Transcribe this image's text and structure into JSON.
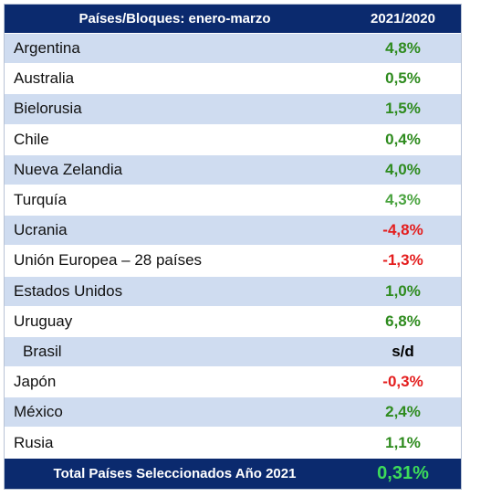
{
  "table": {
    "header": {
      "col1": "Países/Bloques: enero-marzo",
      "col2": "2021/2020"
    },
    "rows": [
      {
        "name": "Argentina",
        "value": "4,8%",
        "tone": "pos"
      },
      {
        "name": "Australia",
        "value": "0,5%",
        "tone": "pos"
      },
      {
        "name": "Bielorusia",
        "value": "1,5%",
        "tone": "pos"
      },
      {
        "name": "Chile",
        "value": "0,4%",
        "tone": "pos"
      },
      {
        "name": "Nueva Zelandia",
        "value": "4,0%",
        "tone": "pos"
      },
      {
        "name": "Turquía",
        "value": "4,3%",
        "tone": "pos-light"
      },
      {
        "name": "Ucrania",
        "value": "-4,8%",
        "tone": "neg"
      },
      {
        "name": "Unión Europea – 28 países",
        "value": "-1,3%",
        "tone": "neg"
      },
      {
        "name": "Estados Unidos",
        "value": "1,0%",
        "tone": "pos"
      },
      {
        "name": "Uruguay",
        "value": "6,8%",
        "tone": "pos"
      },
      {
        "name": "Brasil",
        "value": "s/d",
        "tone": "neu"
      },
      {
        "name": "Japón",
        "value": "-0,3%",
        "tone": "neg"
      },
      {
        "name": "México",
        "value": "2,4%",
        "tone": "pos"
      },
      {
        "name": "Rusia",
        "value": "1,1%",
        "tone": "pos"
      }
    ],
    "footer": {
      "label": "Total Países Seleccionados Año 2021",
      "value": "0,31%"
    }
  },
  "colors": {
    "header_bg": "#0b2a6e",
    "stripe": "#cfdcf0",
    "positive": "#2e8b1e",
    "negative": "#e41e1e",
    "total": "#3ddc5a"
  }
}
